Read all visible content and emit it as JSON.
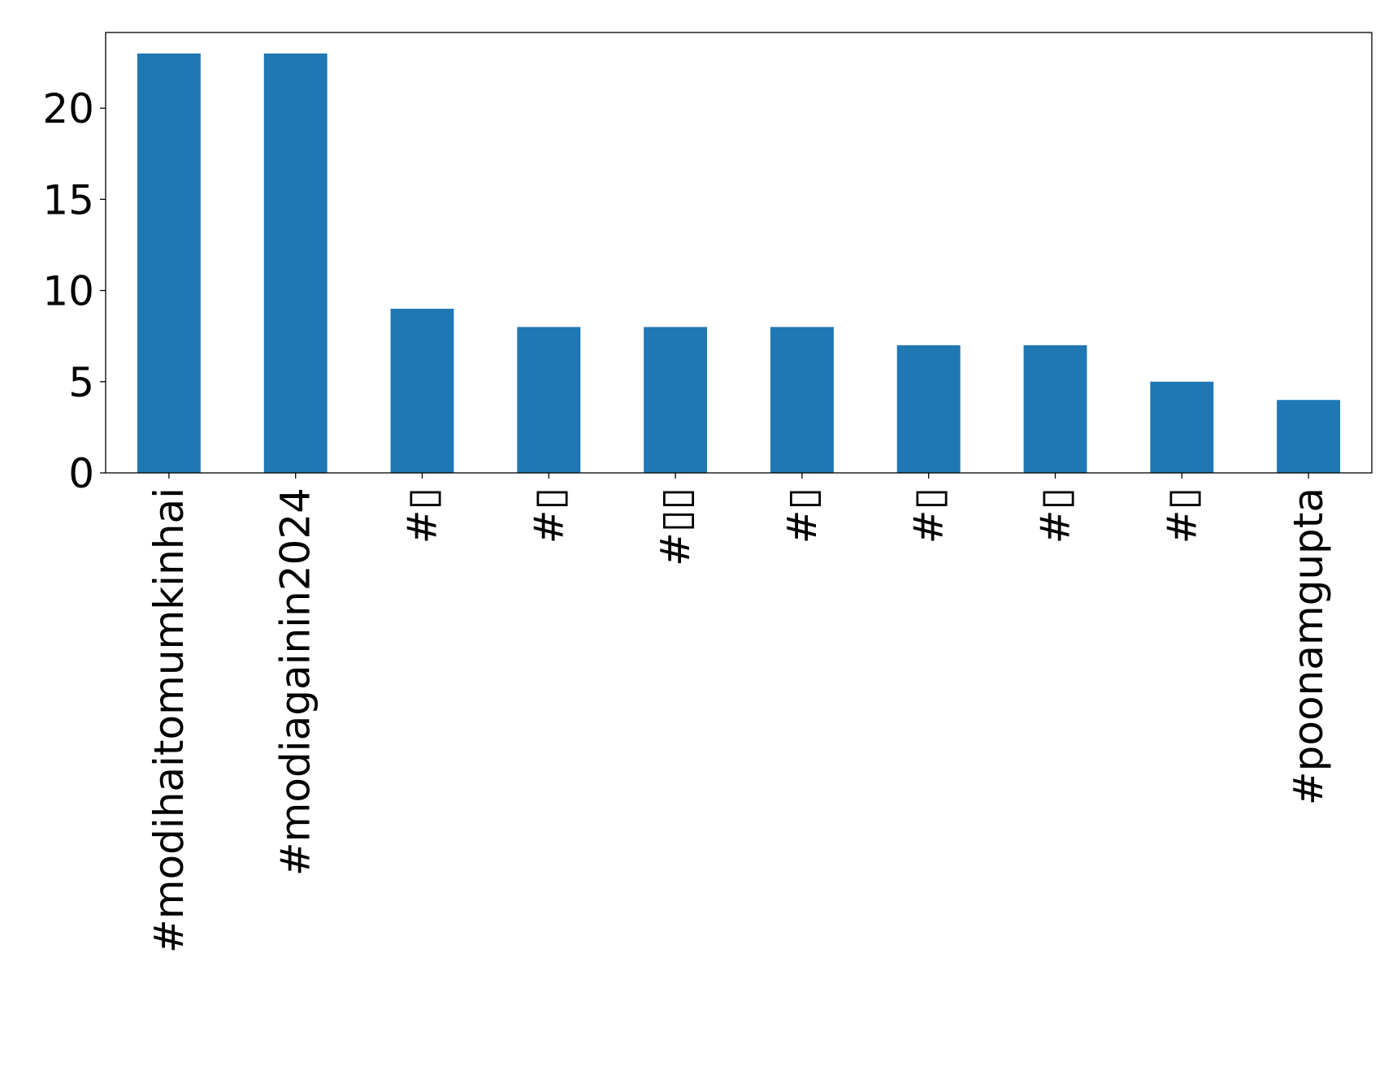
{
  "chart_data": {
    "type": "bar",
    "title": "",
    "xlabel": "",
    "ylabel": "",
    "categories": [
      "#modihaitomumkinhai",
      "#modiagainin2024",
      "#▯",
      "#▯",
      "#▯▯",
      "#▯",
      "#▯",
      "#▯",
      "#▯",
      "#poonamgupta"
    ],
    "values": [
      23,
      23,
      9,
      8,
      8,
      8,
      7,
      7,
      5,
      4
    ],
    "ylim": [
      0,
      24.15
    ],
    "yticks": [
      0,
      5,
      10,
      15,
      20
    ],
    "ytick_labels": [
      "0",
      "5",
      "10",
      "15",
      "20"
    ],
    "grid": false,
    "legend": "none",
    "bar_color": "#1f77b4"
  }
}
